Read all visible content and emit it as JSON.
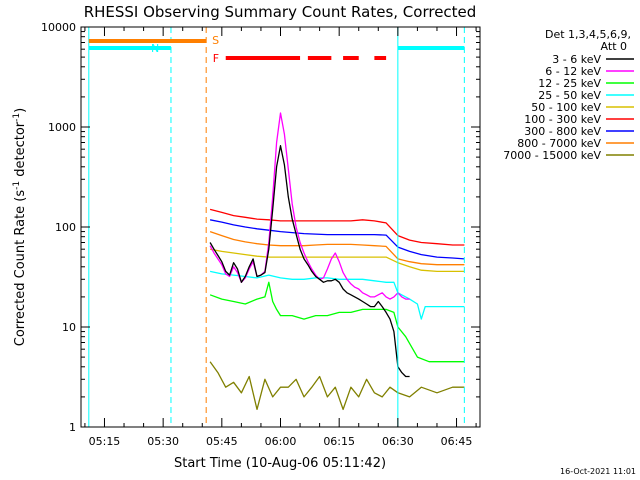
{
  "chart_data": {
    "type": "line",
    "title": "RHESSI Observing Summary Count Rates, Corrected",
    "xlabel": "Start Time (10-Aug-06 05:11:42)",
    "ylabel": "Corrected Count Rate (s",
    "ylabel_sup1": "-1",
    "ylabel_mid": " detector",
    "ylabel_sup2": "-1",
    "ylabel_end": ")",
    "y_scale": "log",
    "ylim": [
      1,
      10000
    ],
    "xlim": [
      "05:09",
      "06:51"
    ],
    "x_ticks": [
      "05:15",
      "05:30",
      "05:45",
      "06:00",
      "06:15",
      "06:30",
      "06:45"
    ],
    "y_ticks": [
      "1",
      "10",
      "100",
      "1000",
      "10000"
    ],
    "legend_header": [
      "Det 1,3,4,5,6,9,",
      "Att 0"
    ],
    "legend_position": "right",
    "timestamp": "16-Oct-2021 11:01",
    "flags": [
      {
        "label": "S",
        "color": "#ff7f00",
        "segments": [
          [
            "05:11",
            "05:41"
          ]
        ]
      },
      {
        "label": "F",
        "color": "#ff0000",
        "segments": [
          [
            "05:46",
            "06:05"
          ],
          [
            "06:07",
            "06:13"
          ],
          [
            "06:16",
            "06:20"
          ],
          [
            "06:24",
            "06:27"
          ]
        ]
      },
      {
        "label": "N",
        "color": "#00ffff",
        "segments": [
          [
            "05:11",
            "05:32"
          ],
          [
            "06:30",
            "06:47"
          ]
        ]
      }
    ],
    "vlines": [
      {
        "time": "05:11",
        "color": "#00ffff",
        "style": "solid"
      },
      {
        "time": "05:32",
        "color": "#00ffff",
        "style": "dashed"
      },
      {
        "time": "05:41",
        "color": "#ff7f00",
        "style": "dashed"
      },
      {
        "time": "06:30",
        "color": "#00ffff",
        "style": "solid"
      },
      {
        "time": "06:47",
        "color": "#00ffff",
        "style": "dashed"
      }
    ],
    "series": [
      {
        "name": "3 - 6 keV",
        "color": "#000000",
        "x": [
          "05:42",
          "05:43",
          "05:44",
          "05:45",
          "05:46",
          "05:47",
          "05:48",
          "05:49",
          "05:50",
          "05:51",
          "05:52",
          "05:53",
          "05:54",
          "05:55",
          "05:56",
          "05:57",
          "05:58",
          "05:59",
          "06:00",
          "06:01",
          "06:02",
          "06:03",
          "06:04",
          "06:05",
          "06:06",
          "06:07",
          "06:08",
          "06:09",
          "06:10",
          "06:11",
          "06:12",
          "06:13",
          "06:14",
          "06:15",
          "06:16",
          "06:17",
          "06:18",
          "06:19",
          "06:20",
          "06:21",
          "06:22",
          "06:23",
          "06:24",
          "06:25",
          "06:26",
          "06:27",
          "06:28",
          "06:29",
          "06:30",
          "06:31",
          "06:32",
          "06:33"
        ],
        "y": [
          70,
          60,
          52,
          45,
          36,
          33,
          44,
          38,
          28,
          32,
          40,
          48,
          32,
          33,
          35,
          60,
          150,
          400,
          650,
          420,
          200,
          120,
          85,
          60,
          48,
          42,
          36,
          32,
          30,
          28,
          29,
          29,
          30,
          28,
          24,
          22,
          21,
          20,
          19,
          18,
          17,
          16,
          16,
          18,
          16,
          14,
          12,
          9,
          4,
          3.5,
          3.2,
          3.2
        ]
      },
      {
        "name": "6 - 12 keV",
        "color": "#ff00ff",
        "x": [
          "05:42",
          "05:43",
          "05:44",
          "05:45",
          "05:46",
          "05:47",
          "05:48",
          "05:49",
          "05:50",
          "05:51",
          "05:52",
          "05:53",
          "05:54",
          "05:55",
          "05:56",
          "05:57",
          "05:58",
          "05:59",
          "06:00",
          "06:01",
          "06:02",
          "06:03",
          "06:04",
          "06:05",
          "06:06",
          "06:07",
          "06:08",
          "06:09",
          "06:10",
          "06:11",
          "06:12",
          "06:13",
          "06:14",
          "06:15",
          "06:16",
          "06:17",
          "06:18",
          "06:19",
          "06:20",
          "06:21",
          "06:22",
          "06:23",
          "06:24",
          "06:25",
          "06:26",
          "06:27",
          "06:28",
          "06:29",
          "06:30",
          "06:31",
          "06:32",
          "06:33"
        ],
        "y": [
          65,
          55,
          48,
          42,
          34,
          32,
          40,
          35,
          28,
          31,
          38,
          45,
          32,
          33,
          36,
          70,
          200,
          700,
          1380,
          850,
          380,
          170,
          100,
          70,
          55,
          45,
          38,
          33,
          30,
          31,
          38,
          48,
          55,
          45,
          35,
          30,
          27,
          25,
          24,
          22,
          21,
          20,
          20,
          21,
          22,
          20,
          19,
          20,
          22,
          20,
          19,
          19
        ]
      },
      {
        "name": "12 - 25 keV",
        "color": "#00ff00",
        "x": [
          "05:42",
          "05:45",
          "05:48",
          "05:51",
          "05:54",
          "05:56",
          "05:57",
          "05:58",
          "05:59",
          "06:00",
          "06:03",
          "06:06",
          "06:09",
          "06:12",
          "06:15",
          "06:18",
          "06:21",
          "06:24",
          "06:27",
          "06:29",
          "06:30",
          "06:32",
          "06:35",
          "06:38",
          "06:41",
          "06:44",
          "06:47"
        ],
        "y": [
          21,
          19,
          18,
          17,
          19,
          20,
          28,
          18,
          15,
          13,
          13,
          12,
          13,
          13,
          14,
          14,
          15,
          15,
          15,
          14,
          10,
          8,
          5,
          4.5,
          4.5,
          4.5,
          4.5
        ]
      },
      {
        "name": "25 - 50 keV",
        "color": "#00ffff",
        "x": [
          "05:42",
          "05:45",
          "05:48",
          "05:51",
          "05:54",
          "05:57",
          "06:00",
          "06:03",
          "06:06",
          "06:09",
          "06:12",
          "06:15",
          "06:18",
          "06:21",
          "06:24",
          "06:27",
          "06:29",
          "06:30",
          "06:33",
          "06:35",
          "06:36",
          "06:37",
          "06:40",
          "06:43",
          "06:47"
        ],
        "y": [
          36,
          34,
          33,
          32,
          31,
          33,
          31,
          30,
          30,
          31,
          31,
          30,
          30,
          30,
          29,
          28,
          28,
          22,
          19,
          17,
          12,
          16,
          16,
          16,
          16
        ]
      },
      {
        "name": "50 - 100 keV",
        "color": "#d8c000",
        "x": [
          "05:42",
          "05:45",
          "05:48",
          "05:51",
          "05:54",
          "05:57",
          "06:00",
          "06:03",
          "06:06",
          "06:09",
          "06:12",
          "06:15",
          "06:18",
          "06:21",
          "06:24",
          "06:27",
          "06:30",
          "06:33",
          "06:36",
          "06:40",
          "06:44",
          "06:47"
        ],
        "y": [
          60,
          57,
          55,
          53,
          51,
          50,
          50,
          50,
          50,
          50,
          50,
          50,
          50,
          50,
          50,
          50,
          44,
          40,
          37,
          36,
          36,
          36
        ]
      },
      {
        "name": "100 - 300 keV",
        "color": "#ff0000",
        "x": [
          "05:42",
          "05:45",
          "05:48",
          "05:51",
          "05:54",
          "05:57",
          "06:00",
          "06:03",
          "06:06",
          "06:09",
          "06:12",
          "06:15",
          "06:18",
          "06:21",
          "06:24",
          "06:27",
          "06:30",
          "06:33",
          "06:36",
          "06:40",
          "06:44",
          "06:47"
        ],
        "y": [
          150,
          140,
          130,
          125,
          120,
          118,
          115,
          115,
          115,
          115,
          115,
          115,
          115,
          118,
          115,
          110,
          82,
          74,
          70,
          68,
          66,
          66
        ]
      },
      {
        "name": "300 - 800 keV",
        "color": "#0000ff",
        "x": [
          "05:42",
          "05:45",
          "05:48",
          "05:51",
          "05:54",
          "05:57",
          "06:00",
          "06:03",
          "06:06",
          "06:09",
          "06:12",
          "06:15",
          "06:18",
          "06:21",
          "06:24",
          "06:27",
          "06:30",
          "06:33",
          "06:36",
          "06:40",
          "06:44",
          "06:47"
        ],
        "y": [
          118,
          112,
          105,
          100,
          96,
          93,
          90,
          88,
          86,
          85,
          84,
          84,
          84,
          84,
          84,
          83,
          63,
          57,
          53,
          50,
          49,
          48
        ]
      },
      {
        "name": "800 - 7000 keV",
        "color": "#ff7f00",
        "x": [
          "05:42",
          "05:45",
          "05:48",
          "05:51",
          "05:54",
          "05:57",
          "06:00",
          "06:03",
          "06:06",
          "06:09",
          "06:12",
          "06:15",
          "06:18",
          "06:21",
          "06:24",
          "06:27",
          "06:30",
          "06:33",
          "06:36",
          "06:40",
          "06:44",
          "06:47"
        ],
        "y": [
          90,
          82,
          75,
          71,
          68,
          66,
          65,
          65,
          65,
          66,
          67,
          67,
          67,
          66,
          65,
          64,
          48,
          45,
          43,
          42,
          42,
          42
        ]
      },
      {
        "name": "7000 - 15000 keV",
        "color": "#808000",
        "x": [
          "05:42",
          "05:44",
          "05:46",
          "05:48",
          "05:50",
          "05:52",
          "05:54",
          "05:56",
          "05:58",
          "06:00",
          "06:02",
          "06:04",
          "06:06",
          "06:08",
          "06:10",
          "06:12",
          "06:14",
          "06:16",
          "06:18",
          "06:20",
          "06:22",
          "06:24",
          "06:26",
          "06:28",
          "06:30",
          "06:33",
          "06:36",
          "06:40",
          "06:44",
          "06:47"
        ],
        "y": [
          4.5,
          3.5,
          2.5,
          2.8,
          2.2,
          3.2,
          1.5,
          3,
          2,
          2.5,
          2.5,
          3,
          2,
          2.5,
          3.2,
          2,
          2.5,
          1.5,
          2.5,
          2,
          3,
          2.2,
          2,
          2.5,
          2.2,
          2,
          2.5,
          2.2,
          2.5,
          2.5
        ]
      }
    ]
  }
}
